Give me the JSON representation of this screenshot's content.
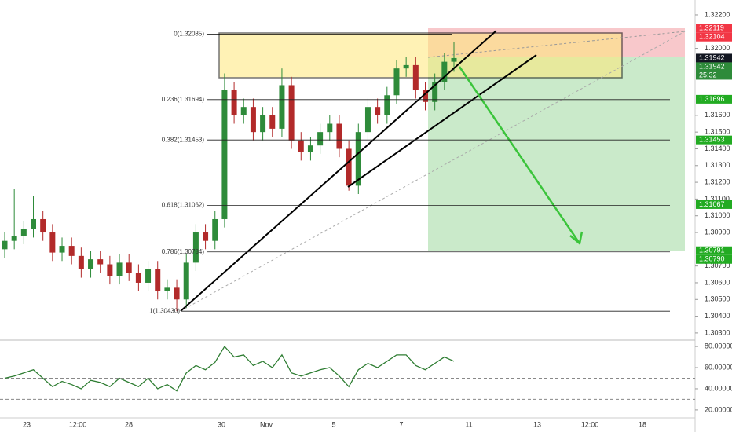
{
  "chart_data": {
    "type": "candlestick",
    "x_labels": [
      "23",
      "12:00",
      "28",
      "30",
      "Nov",
      "5",
      "7",
      "11",
      "13",
      "12:00",
      "18"
    ],
    "ylim": [
      1.30262,
      1.32289
    ],
    "yticks": [
      {
        "value": 1.322,
        "label": "1.32200"
      },
      {
        "value": 1.32,
        "label": "1.32000"
      },
      {
        "value": 1.316,
        "label": "1.31600"
      },
      {
        "value": 1.315,
        "label": "1.31500"
      },
      {
        "value": 1.314,
        "label": "1.31400"
      },
      {
        "value": 1.313,
        "label": "1.31300"
      },
      {
        "value": 1.312,
        "label": "1.31200"
      },
      {
        "value": 1.311,
        "label": "1.31100"
      },
      {
        "value": 1.31,
        "label": "1.31000"
      },
      {
        "value": 1.309,
        "label": "1.30900"
      },
      {
        "value": 1.307,
        "label": "1.30700"
      },
      {
        "value": 1.306,
        "label": "1.30600"
      },
      {
        "value": 1.305,
        "label": "1.30500"
      },
      {
        "value": 1.304,
        "label": "1.30400"
      },
      {
        "value": 1.303,
        "label": "1.30300"
      }
    ],
    "up_color": "#2e8b3a",
    "down_color": "#b22a2a",
    "candles": {
      "open": [
        1.308,
        1.3085,
        1.3088,
        1.3092,
        1.3098,
        1.309,
        1.3078,
        1.3082,
        1.3076,
        1.3068,
        1.3074,
        1.3071,
        1.3064,
        1.3072,
        1.3066,
        1.306,
        1.3068,
        1.3055,
        1.3057,
        1.305,
        1.3072,
        1.309,
        1.3085,
        1.3098,
        1.3175,
        1.316,
        1.3165,
        1.315,
        1.316,
        1.3152,
        1.3178,
        1.3145,
        1.3138,
        1.3142,
        1.315,
        1.3155,
        1.314,
        1.3118,
        1.315,
        1.3165,
        1.316,
        1.3172,
        1.3188,
        1.319,
        1.3175,
        1.3168,
        1.318,
        1.3192
      ],
      "high": [
        1.309,
        1.3116,
        1.3097,
        1.3112,
        1.3103,
        1.3095,
        1.3087,
        1.3087,
        1.3081,
        1.3079,
        1.3079,
        1.3076,
        1.3077,
        1.3077,
        1.3071,
        1.3073,
        1.3073,
        1.3062,
        1.3062,
        1.3077,
        1.3095,
        1.3095,
        1.3103,
        1.3185,
        1.318,
        1.317,
        1.317,
        1.3165,
        1.3165,
        1.3188,
        1.3183,
        1.315,
        1.3147,
        1.3155,
        1.316,
        1.316,
        1.3145,
        1.3155,
        1.317,
        1.317,
        1.3177,
        1.3193,
        1.3195,
        1.3195,
        1.318,
        1.3185,
        1.3197,
        1.3204
      ],
      "low": [
        1.3075,
        1.308,
        1.3083,
        1.3087,
        1.3085,
        1.3073,
        1.3073,
        1.3071,
        1.3063,
        1.3063,
        1.3066,
        1.3059,
        1.3059,
        1.3061,
        1.3055,
        1.3055,
        1.305,
        1.305,
        1.3043,
        1.3045,
        1.3067,
        1.308,
        1.308,
        1.3093,
        1.3155,
        1.3155,
        1.3145,
        1.3145,
        1.3147,
        1.3147,
        1.314,
        1.3133,
        1.3133,
        1.3137,
        1.3145,
        1.3135,
        1.3115,
        1.3113,
        1.3145,
        1.3155,
        1.3155,
        1.3167,
        1.3183,
        1.317,
        1.3163,
        1.3163,
        1.3175,
        1.3186
      ],
      "close": [
        1.3085,
        1.3088,
        1.3092,
        1.3098,
        1.309,
        1.3078,
        1.3082,
        1.3076,
        1.3068,
        1.3074,
        1.3071,
        1.3064,
        1.3072,
        1.3066,
        1.306,
        1.3068,
        1.3055,
        1.3057,
        1.305,
        1.3072,
        1.309,
        1.3085,
        1.3098,
        1.3175,
        1.316,
        1.3165,
        1.315,
        1.316,
        1.3152,
        1.3178,
        1.3145,
        1.3138,
        1.3142,
        1.315,
        1.3155,
        1.314,
        1.3118,
        1.315,
        1.3165,
        1.316,
        1.3172,
        1.3188,
        1.319,
        1.3175,
        1.3168,
        1.318,
        1.3192,
        1.31942
      ]
    },
    "fib_levels": [
      {
        "label": "0(1.32085)",
        "price": 1.32085
      },
      {
        "label": "0.236(1.31694)",
        "price": 1.31694
      },
      {
        "label": "0.382(1.31453)",
        "price": 1.31453
      },
      {
        "label": "0.618(1.31062)",
        "price": 1.31062
      },
      {
        "label": "0.786(1.30784)",
        "price": 1.30784
      },
      {
        "label": "1(1.30430)",
        "price": 1.3043
      }
    ],
    "price_labels": [
      {
        "label": "1.32119",
        "value": 1.32119,
        "color": "#f23645"
      },
      {
        "label": "1.32104",
        "value": 1.32104,
        "color": "#f23645"
      },
      {
        "label": "1.31942",
        "value": 1.31942,
        "color": "#131722"
      },
      {
        "label": "1.31942",
        "value": 1.31942,
        "color": "#2e8b3a"
      },
      {
        "label": "1.31696",
        "value": 1.31696,
        "color": "#22ab22"
      },
      {
        "label": "1.31453",
        "value": 1.31453,
        "color": "#22ab22"
      },
      {
        "label": "1.31067",
        "value": 1.31067,
        "color": "#22ab22"
      },
      {
        "label": "1.30791",
        "value": 1.30791,
        "color": "#22ab22"
      },
      {
        "label": "1.30790",
        "value": 1.3079,
        "color": "#22ab22"
      }
    ],
    "countdown": "25:32",
    "rsi": {
      "values": [
        50,
        52,
        55,
        58,
        50,
        42,
        47,
        44,
        40,
        48,
        46,
        42,
        50,
        46,
        42,
        50,
        40,
        44,
        38,
        55,
        62,
        58,
        65,
        80,
        70,
        72,
        62,
        66,
        60,
        72,
        55,
        52,
        55,
        58,
        60,
        52,
        42,
        58,
        64,
        60,
        66,
        72,
        72,
        62,
        58,
        64,
        70,
        66
      ],
      "color": "#2e7d32",
      "ylim": [
        12.5,
        85.25
      ],
      "yticks": [
        {
          "value": 80,
          "label": "80.00000"
        },
        {
          "value": 60,
          "label": "60.00000"
        },
        {
          "value": 40,
          "label": "40.00000"
        },
        {
          "value": 20,
          "label": "20.00000"
        }
      ],
      "levels": [
        70,
        50,
        30
      ]
    }
  }
}
